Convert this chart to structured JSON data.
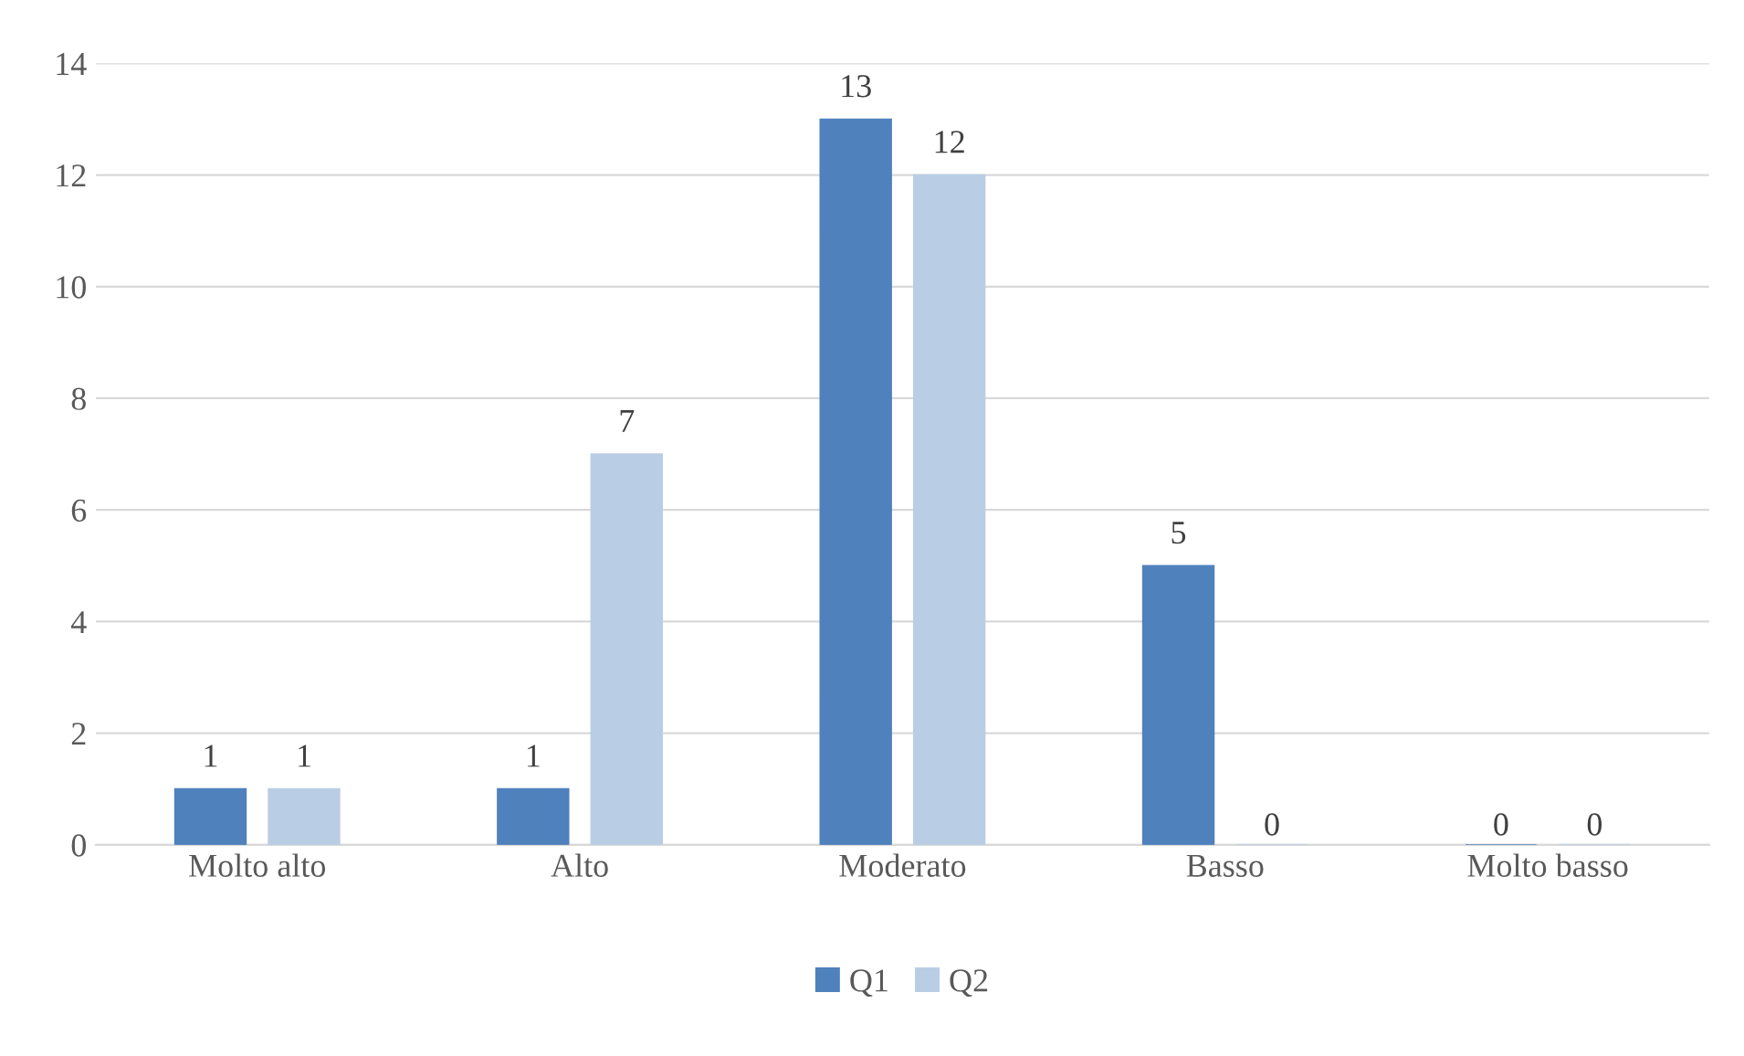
{
  "chart_data": {
    "type": "bar",
    "categories": [
      "Molto alto",
      "Alto",
      "Moderato",
      "Basso",
      "Molto basso"
    ],
    "series": [
      {
        "name": "Q1",
        "color": "#4f81bd",
        "values": [
          1,
          1,
          13,
          5,
          0
        ]
      },
      {
        "name": "Q2",
        "color": "#b9cde5",
        "values": [
          1,
          7,
          12,
          0,
          0
        ]
      }
    ],
    "ylim": [
      0,
      14
    ],
    "yticks": [
      0,
      2,
      4,
      6,
      8,
      10,
      12,
      14
    ],
    "grid": "y",
    "legend": "bottom",
    "data_labels": true
  }
}
